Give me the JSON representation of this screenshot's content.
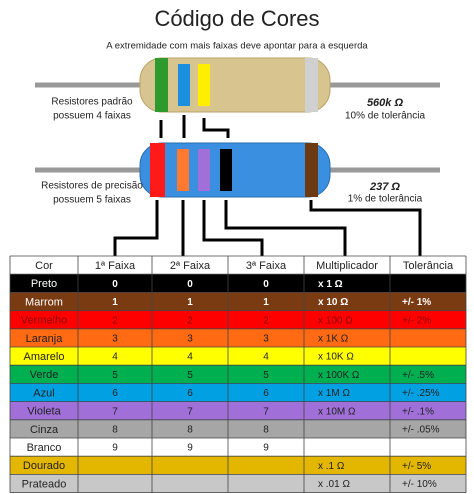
{
  "header": {
    "title": "Código de Cores",
    "subtitle": "A extremidade com mais faixas deve apontar para a esquerda"
  },
  "resistors": [
    {
      "label": [
        "Resistores padrão",
        "possuem 4 faixas"
      ],
      "value": "560k Ω",
      "tolerance": "10% de tolerância"
    },
    {
      "label": [
        "Resistores de precisão",
        "possuem 5 faixas"
      ],
      "value": "237 Ω",
      "tolerance": "1% de tolerância"
    }
  ],
  "table": {
    "columns": [
      "Cor",
      "1ª Faixa",
      "2ª Faixa",
      "3ª Faixa",
      "Multiplicador",
      "Tolerância"
    ],
    "rows": [
      {
        "color": "#000000",
        "text": "#ffffff",
        "cells": [
          "Preto",
          0,
          0,
          0,
          "x 1 Ω",
          null
        ]
      },
      {
        "color": "#7a3b12",
        "text": "#ffffff",
        "cells": [
          "Marrom",
          1,
          1,
          1,
          "x 10 Ω",
          "+/-  1%"
        ]
      },
      {
        "color": "#ff0000",
        "text": "#8b0000",
        "cells": [
          "Vermelho",
          2,
          2,
          2,
          "x 100 Ω",
          "+/-  2%"
        ]
      },
      {
        "color": "#ff6a13",
        "text": "#222222",
        "cells": [
          "Laranja",
          3,
          3,
          3,
          "x 1K Ω",
          null
        ]
      },
      {
        "color": "#ffff00",
        "text": "#222222",
        "cells": [
          "Amarelo",
          4,
          4,
          4,
          "x 10K Ω",
          null
        ]
      },
      {
        "color": "#00b050",
        "text": "#222222",
        "cells": [
          "Verde",
          5,
          5,
          5,
          "x 100K Ω",
          "+/-  .5%"
        ]
      },
      {
        "color": "#00a0e3",
        "text": "#222222",
        "cells": [
          "Azul",
          6,
          6,
          6,
          "x 1M Ω",
          "+/-  .25%"
        ]
      },
      {
        "color": "#a070d8",
        "text": "#222222",
        "cells": [
          "Violeta",
          7,
          7,
          7,
          "x 10M Ω",
          "+/-  .1%"
        ]
      },
      {
        "color": "#a6a6a6",
        "text": "#222222",
        "cells": [
          "Cinza",
          8,
          8,
          8,
          null,
          "+/-  .05%"
        ]
      },
      {
        "color": "#ffffff",
        "text": "#222222",
        "cells": [
          "Branco",
          9,
          9,
          9,
          null,
          null
        ]
      },
      {
        "color": "#e3b600",
        "text": "#222222",
        "cells": [
          "Dourado",
          null,
          null,
          null,
          "x .1 Ω",
          "+/-  5%"
        ]
      },
      {
        "color": "#c8c8c8",
        "text": "#222222",
        "cells": [
          "Prateado",
          null,
          null,
          null,
          "x .01 Ω",
          "+/-  10%"
        ]
      }
    ]
  }
}
